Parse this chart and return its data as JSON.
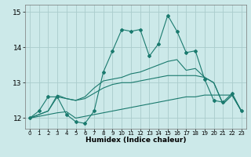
{
  "title": "",
  "xlabel": "Humidex (Indice chaleur)",
  "ylabel": "",
  "background_color": "#cce9e9",
  "grid_color": "#aacccc",
  "line_color": "#1a7a6e",
  "x_data": [
    0,
    1,
    2,
    3,
    4,
    5,
    6,
    7,
    8,
    9,
    10,
    11,
    12,
    13,
    14,
    15,
    16,
    17,
    18,
    19,
    20,
    21,
    22,
    23
  ],
  "line1": [
    12.0,
    12.2,
    12.6,
    12.6,
    12.1,
    11.9,
    11.85,
    12.2,
    13.3,
    13.9,
    14.5,
    14.45,
    14.5,
    13.75,
    14.1,
    14.9,
    14.45,
    13.85,
    13.9,
    13.1,
    12.5,
    12.45,
    12.7,
    12.2
  ],
  "line2": [
    12.0,
    12.05,
    12.1,
    12.15,
    12.18,
    12.0,
    12.05,
    12.1,
    12.15,
    12.2,
    12.25,
    12.3,
    12.35,
    12.4,
    12.45,
    12.5,
    12.55,
    12.6,
    12.6,
    12.65,
    12.65,
    12.65,
    12.65,
    12.2
  ],
  "line3": [
    12.0,
    12.1,
    12.2,
    12.6,
    12.55,
    12.5,
    12.6,
    12.85,
    13.05,
    13.1,
    13.15,
    13.25,
    13.3,
    13.4,
    13.5,
    13.6,
    13.65,
    13.35,
    13.4,
    13.15,
    13.0,
    12.4,
    12.65,
    12.2
  ],
  "line4": [
    12.0,
    12.1,
    12.2,
    12.65,
    12.55,
    12.5,
    12.55,
    12.7,
    12.85,
    12.95,
    13.0,
    13.0,
    13.05,
    13.1,
    13.15,
    13.2,
    13.2,
    13.2,
    13.2,
    13.15,
    13.0,
    12.4,
    12.65,
    12.2
  ],
  "ylim": [
    11.7,
    15.2
  ],
  "yticks": [
    12,
    13,
    14,
    15
  ],
  "xticks": [
    0,
    1,
    2,
    3,
    4,
    5,
    6,
    7,
    8,
    9,
    10,
    11,
    12,
    13,
    14,
    15,
    16,
    17,
    18,
    19,
    20,
    21,
    22,
    23
  ],
  "xlim": [
    -0.5,
    23.5
  ]
}
